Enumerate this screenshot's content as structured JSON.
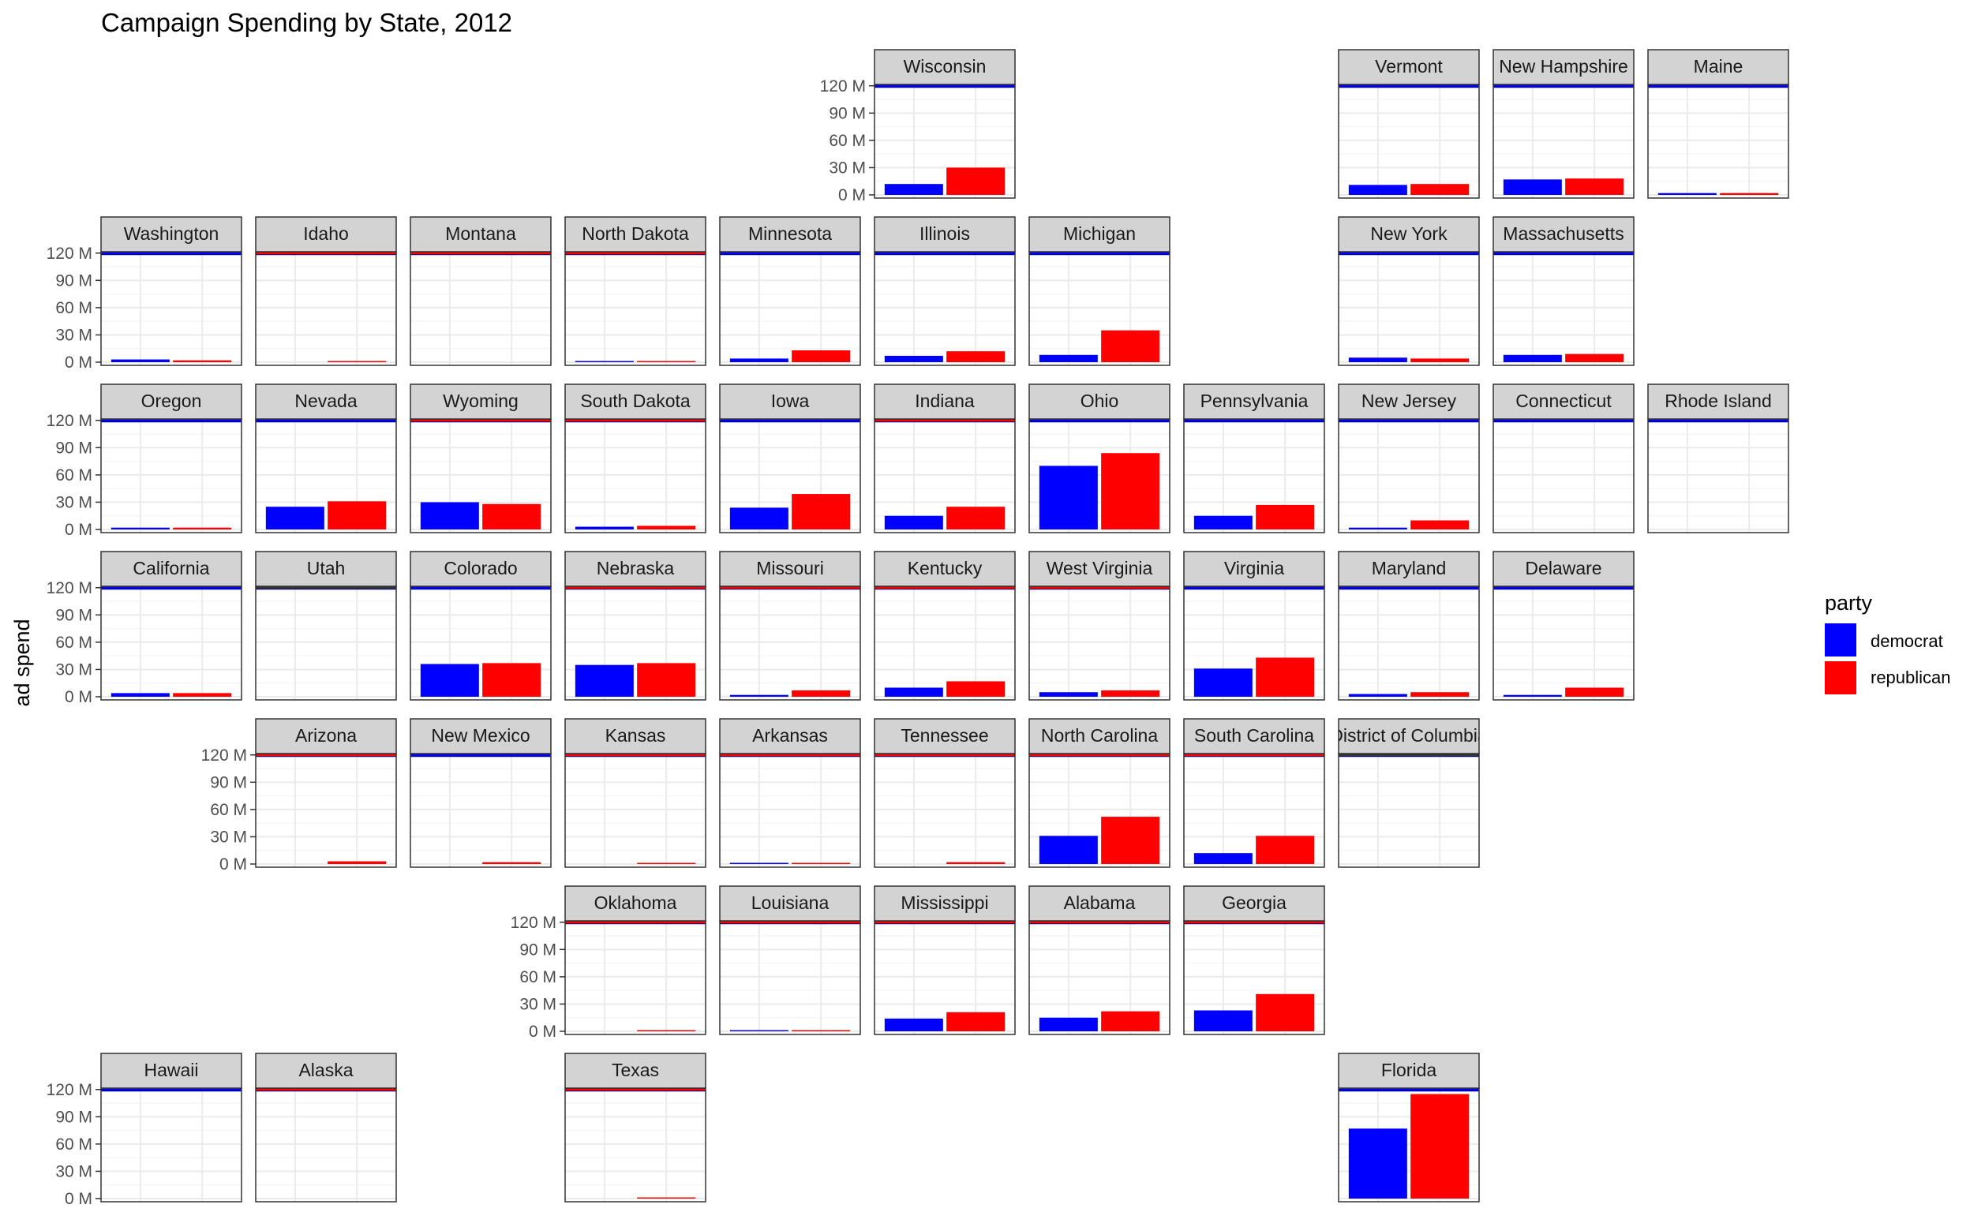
{
  "chart_data": {
    "type": "bar",
    "title": "Campaign Spending by State, 2012",
    "xlabel": "",
    "ylabel": "ad spend",
    "ylim": [
      0,
      125
    ],
    "y_unit": "M",
    "y_ticks": [
      0,
      30,
      60,
      90,
      120
    ],
    "y_tick_labels": [
      "0 M",
      "30 M",
      "60 M",
      "90 M",
      "120 M"
    ],
    "grid": true,
    "layout": "geographic facet grid of states",
    "legend": {
      "title": "party",
      "placement": "right",
      "entries": [
        {
          "label": "democrat",
          "color": "#0000FF"
        },
        {
          "label": "republican",
          "color": "#FF0000"
        }
      ]
    },
    "colors": {
      "democrat": "#0000FF",
      "republican": "#FF0000",
      "strip_bg": "#D3D3D3",
      "winner_none": "#333333"
    },
    "states": [
      {
        "name": "Wisconsin",
        "row": 0,
        "col": 5,
        "winner": "democrat",
        "democrat": 12,
        "republican": 30
      },
      {
        "name": "Vermont",
        "row": 0,
        "col": 8,
        "winner": "democrat",
        "democrat": 11,
        "republican": 12
      },
      {
        "name": "New Hampshire",
        "row": 0,
        "col": 9,
        "winner": "democrat",
        "democrat": 17,
        "republican": 18
      },
      {
        "name": "Maine",
        "row": 0,
        "col": 10,
        "winner": "democrat",
        "democrat": 2,
        "republican": 2
      },
      {
        "name": "Washington",
        "row": 1,
        "col": 0,
        "winner": "democrat",
        "democrat": 3,
        "republican": 2
      },
      {
        "name": "Idaho",
        "row": 1,
        "col": 1,
        "winner": "republican",
        "democrat": 0,
        "republican": 0.3
      },
      {
        "name": "Montana",
        "row": 1,
        "col": 2,
        "winner": "republican",
        "democrat": 0,
        "republican": 0
      },
      {
        "name": "North Dakota",
        "row": 1,
        "col": 3,
        "winner": "republican",
        "democrat": 0.3,
        "republican": 0.3
      },
      {
        "name": "Minnesota",
        "row": 1,
        "col": 4,
        "winner": "democrat",
        "democrat": 4,
        "republican": 13
      },
      {
        "name": "Illinois",
        "row": 1,
        "col": 5,
        "winner": "democrat",
        "democrat": 7,
        "republican": 12
      },
      {
        "name": "Michigan",
        "row": 1,
        "col": 6,
        "winner": "democrat",
        "democrat": 8,
        "republican": 35
      },
      {
        "name": "New York",
        "row": 1,
        "col": 8,
        "winner": "democrat",
        "democrat": 5,
        "republican": 4
      },
      {
        "name": "Massachusetts",
        "row": 1,
        "col": 9,
        "winner": "democrat",
        "democrat": 8,
        "republican": 9
      },
      {
        "name": "Oregon",
        "row": 2,
        "col": 0,
        "winner": "democrat",
        "democrat": 2,
        "republican": 2
      },
      {
        "name": "Nevada",
        "row": 2,
        "col": 1,
        "winner": "democrat",
        "democrat": 25,
        "republican": 31
      },
      {
        "name": "Wyoming",
        "row": 2,
        "col": 2,
        "winner": "republican",
        "democrat": 30,
        "republican": 28
      },
      {
        "name": "South Dakota",
        "row": 2,
        "col": 3,
        "winner": "republican",
        "democrat": 3,
        "republican": 4
      },
      {
        "name": "Iowa",
        "row": 2,
        "col": 4,
        "winner": "democrat",
        "democrat": 24,
        "republican": 39
      },
      {
        "name": "Indiana",
        "row": 2,
        "col": 5,
        "winner": "republican",
        "democrat": 15,
        "republican": 25
      },
      {
        "name": "Ohio",
        "row": 2,
        "col": 6,
        "winner": "democrat",
        "democrat": 70,
        "republican": 84
      },
      {
        "name": "Pennsylvania",
        "row": 2,
        "col": 7,
        "winner": "democrat",
        "democrat": 15,
        "republican": 27
      },
      {
        "name": "New Jersey",
        "row": 2,
        "col": 8,
        "winner": "democrat",
        "democrat": 2,
        "republican": 10
      },
      {
        "name": "Connecticut",
        "row": 2,
        "col": 9,
        "winner": "democrat",
        "democrat": 0,
        "republican": 0
      },
      {
        "name": "Rhode Island",
        "row": 2,
        "col": 10,
        "winner": "democrat",
        "democrat": 0,
        "republican": 0
      },
      {
        "name": "California",
        "row": 3,
        "col": 0,
        "winner": "democrat",
        "democrat": 4,
        "republican": 4
      },
      {
        "name": "Utah",
        "row": 3,
        "col": 1,
        "winner": "none",
        "democrat": 0,
        "republican": 0
      },
      {
        "name": "Colorado",
        "row": 3,
        "col": 2,
        "winner": "democrat",
        "democrat": 36,
        "republican": 37
      },
      {
        "name": "Nebraska",
        "row": 3,
        "col": 3,
        "winner": "republican",
        "democrat": 35,
        "republican": 37
      },
      {
        "name": "Missouri",
        "row": 3,
        "col": 4,
        "winner": "republican",
        "democrat": 2,
        "republican": 7
      },
      {
        "name": "Kentucky",
        "row": 3,
        "col": 5,
        "winner": "republican",
        "democrat": 10,
        "republican": 17
      },
      {
        "name": "West Virginia",
        "row": 3,
        "col": 6,
        "winner": "republican",
        "democrat": 5,
        "republican": 7
      },
      {
        "name": "Virginia",
        "row": 3,
        "col": 7,
        "winner": "democrat",
        "democrat": 31,
        "republican": 43
      },
      {
        "name": "Maryland",
        "row": 3,
        "col": 8,
        "winner": "democrat",
        "democrat": 3,
        "republican": 5
      },
      {
        "name": "Delaware",
        "row": 3,
        "col": 9,
        "winner": "democrat",
        "democrat": 2,
        "republican": 10
      },
      {
        "name": "Arizona",
        "row": 4,
        "col": 1,
        "winner": "republican",
        "democrat": 0,
        "republican": 3
      },
      {
        "name": "New Mexico",
        "row": 4,
        "col": 2,
        "winner": "democrat",
        "democrat": 0,
        "republican": 2
      },
      {
        "name": "Kansas",
        "row": 4,
        "col": 3,
        "winner": "republican",
        "democrat": 0,
        "republican": 0.3
      },
      {
        "name": "Arkansas",
        "row": 4,
        "col": 4,
        "winner": "republican",
        "democrat": 0.3,
        "republican": 0.3
      },
      {
        "name": "Tennessee",
        "row": 4,
        "col": 5,
        "winner": "republican",
        "democrat": 0,
        "republican": 2
      },
      {
        "name": "North Carolina",
        "row": 4,
        "col": 6,
        "winner": "republican",
        "democrat": 31,
        "republican": 52
      },
      {
        "name": "South Carolina",
        "row": 4,
        "col": 7,
        "winner": "republican",
        "democrat": 12,
        "republican": 31
      },
      {
        "name": "District of Columbia",
        "row": 4,
        "col": 8,
        "winner": "none",
        "democrat": 0,
        "republican": 0
      },
      {
        "name": "Oklahoma",
        "row": 5,
        "col": 3,
        "winner": "republican",
        "democrat": 0,
        "republican": 0.5
      },
      {
        "name": "Louisiana",
        "row": 5,
        "col": 4,
        "winner": "republican",
        "democrat": 0.3,
        "republican": 0.3
      },
      {
        "name": "Mississippi",
        "row": 5,
        "col": 5,
        "winner": "republican",
        "democrat": 14,
        "republican": 21
      },
      {
        "name": "Alabama",
        "row": 5,
        "col": 6,
        "winner": "republican",
        "democrat": 15,
        "republican": 22
      },
      {
        "name": "Georgia",
        "row": 5,
        "col": 7,
        "winner": "republican",
        "democrat": 23,
        "republican": 41
      },
      {
        "name": "Hawaii",
        "row": 6,
        "col": 0,
        "winner": "democrat",
        "democrat": 0,
        "republican": 0
      },
      {
        "name": "Alaska",
        "row": 6,
        "col": 1,
        "winner": "republican",
        "democrat": 0,
        "republican": 0
      },
      {
        "name": "Texas",
        "row": 6,
        "col": 3,
        "winner": "republican",
        "democrat": 0,
        "republican": 1
      },
      {
        "name": "Florida",
        "row": 6,
        "col": 8,
        "winner": "democrat",
        "democrat": 77,
        "republican": 115
      }
    ]
  }
}
